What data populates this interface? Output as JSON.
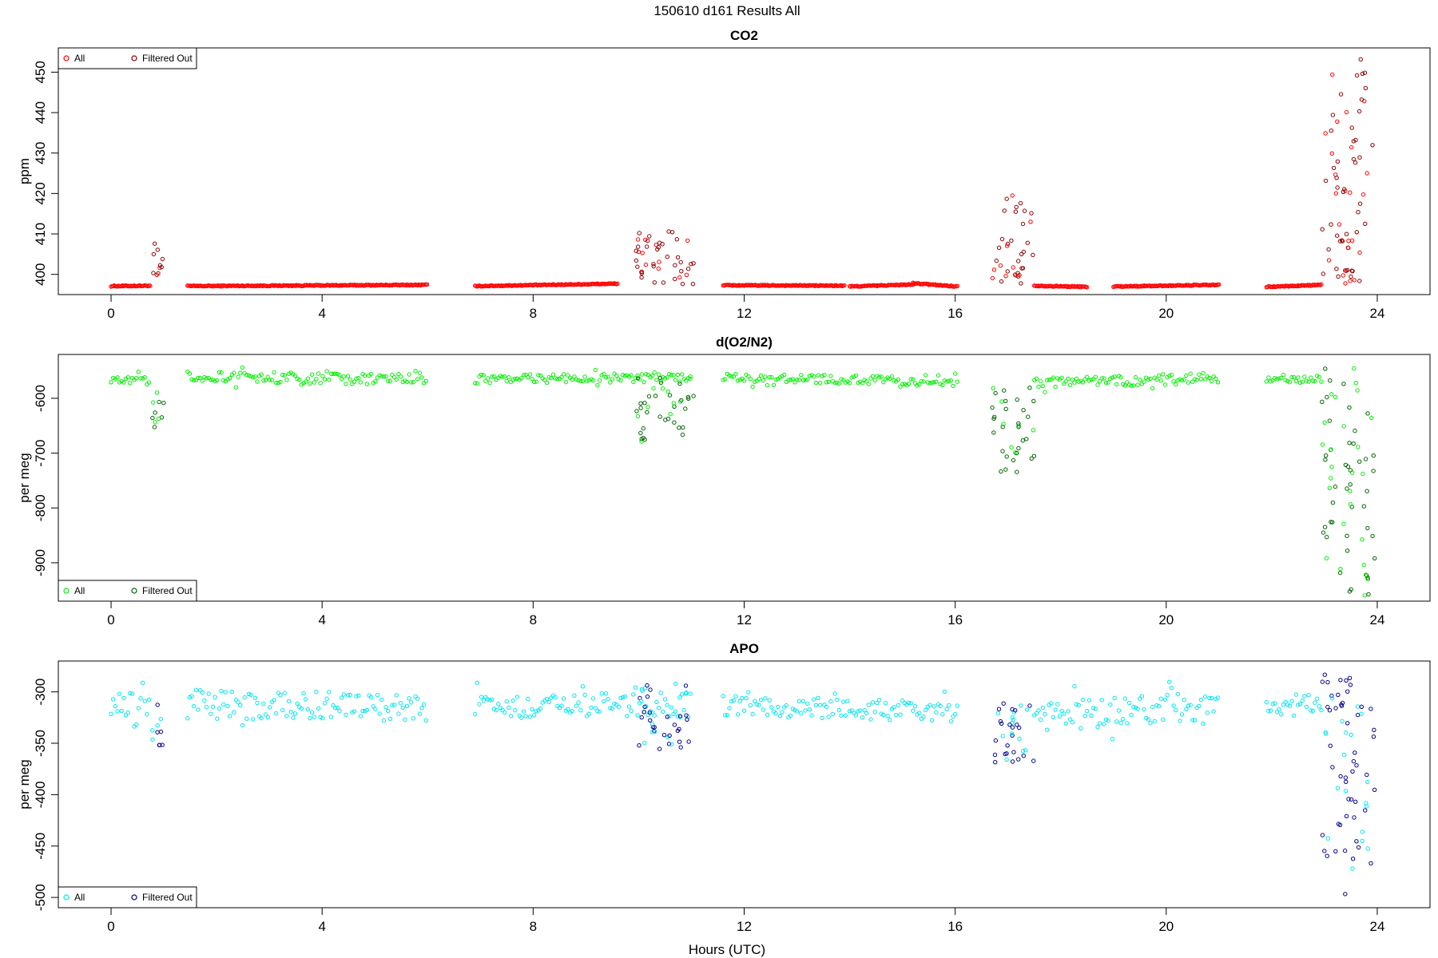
{
  "title": "150610   d161   Results All",
  "xlabel": "Hours (UTC)",
  "chart_data": [
    {
      "type": "scatter",
      "title": "CO2",
      "ylabel": "ppm",
      "xlim": [
        -1,
        25
      ],
      "ylim": [
        395,
        456
      ],
      "xticks": [
        0,
        4,
        8,
        12,
        16,
        20,
        24
      ],
      "yticks": [
        400,
        410,
        420,
        430,
        440,
        450
      ],
      "legend": {
        "position": "top-left",
        "entries": [
          "All",
          "Filtered Out"
        ]
      },
      "colors": {
        "all": "#ff0000",
        "filtered": "#8b0000"
      },
      "baseline_segments": [
        {
          "x0": 0.0,
          "x1": 0.75,
          "y0": 397.1,
          "y1": 397.2
        },
        {
          "x0": 1.45,
          "x1": 6.0,
          "y0": 397.1,
          "y1": 397.4
        },
        {
          "x0": 6.9,
          "x1": 9.6,
          "y0": 397.1,
          "y1": 397.7
        },
        {
          "x0": 11.6,
          "x1": 13.9,
          "y0": 397.3,
          "y1": 397.2
        },
        {
          "x0": 14.0,
          "x1": 15.2,
          "y0": 397.0,
          "y1": 397.5
        },
        {
          "x0": 15.2,
          "x1": 16.05,
          "y0": 397.8,
          "y1": 397.0
        },
        {
          "x0": 17.5,
          "x1": 18.5,
          "y0": 397.2,
          "y1": 396.9
        },
        {
          "x0": 19.0,
          "x1": 21.0,
          "y0": 397.0,
          "y1": 397.4
        },
        {
          "x0": 21.9,
          "x1": 22.95,
          "y0": 396.9,
          "y1": 397.4
        }
      ],
      "spikes": [
        {
          "x0": 0.75,
          "x1": 1.0,
          "min": 397.5,
          "max": 408,
          "n": 10
        },
        {
          "x0": 9.95,
          "x1": 11.05,
          "min": 397.5,
          "max": 411,
          "n": 45
        },
        {
          "x0": 16.7,
          "x1": 17.5,
          "min": 397.5,
          "max": 421,
          "n": 36
        },
        {
          "x0": 22.95,
          "x1": 23.95,
          "min": 397.5,
          "max": 454,
          "n": 70
        }
      ]
    },
    {
      "type": "scatter",
      "title": "d(O2/N2)",
      "ylabel": "per meg",
      "xlim": [
        -1,
        25
      ],
      "ylim": [
        -970,
        -520
      ],
      "xticks": [
        0,
        4,
        8,
        12,
        16,
        20,
        24
      ],
      "yticks": [
        -600,
        -700,
        -800,
        -900
      ],
      "legend": {
        "position": "bottom-left",
        "entries": [
          "All",
          "Filtered Out"
        ]
      },
      "colors": {
        "all": "#00ee00",
        "filtered": "#006400"
      },
      "baseline_segments": [
        {
          "x0": 0.0,
          "x1": 0.75,
          "y0": -563,
          "y1": -567,
          "jitter": 8
        },
        {
          "x0": 1.45,
          "x1": 6.0,
          "y0": -561,
          "y1": -565,
          "jitter": 10
        },
        {
          "x0": 6.9,
          "x1": 11.0,
          "y0": -565,
          "y1": -562,
          "jitter": 8
        },
        {
          "x0": 11.6,
          "x1": 16.05,
          "y0": -562,
          "y1": -570,
          "jitter": 8
        },
        {
          "x0": 17.5,
          "x1": 21.0,
          "y0": -573,
          "y1": -563,
          "jitter": 10
        },
        {
          "x0": 21.9,
          "x1": 22.95,
          "y0": -568,
          "y1": -564,
          "jitter": 6
        }
      ],
      "spikes": [
        {
          "x0": 0.75,
          "x1": 1.0,
          "min": -656,
          "max": -560,
          "n": 10
        },
        {
          "x0": 9.95,
          "x1": 11.05,
          "min": -680,
          "max": -555,
          "n": 40
        },
        {
          "x0": 16.7,
          "x1": 17.5,
          "min": -740,
          "max": -565,
          "n": 36
        },
        {
          "x0": 22.95,
          "x1": 23.95,
          "min": -965,
          "max": -545,
          "n": 70
        }
      ]
    },
    {
      "type": "scatter",
      "title": "APO",
      "ylabel": "per meg",
      "xlim": [
        -1,
        25
      ],
      "ylim": [
        -510,
        -270
      ],
      "xticks": [
        0,
        4,
        8,
        12,
        16,
        20,
        24
      ],
      "yticks": [
        -300,
        -350,
        -400,
        -450,
        -500
      ],
      "legend": {
        "position": "bottom-left",
        "entries": [
          "All",
          "Filtered Out"
        ]
      },
      "colors": {
        "all": "#00e5ee",
        "filtered": "#00008b"
      },
      "baseline_segments": [
        {
          "x0": 0.0,
          "x1": 0.75,
          "y0": -310,
          "y1": -315,
          "jitter": 12
        },
        {
          "x0": 1.45,
          "x1": 6.0,
          "y0": -312,
          "y1": -315,
          "jitter": 14
        },
        {
          "x0": 6.9,
          "x1": 11.0,
          "y0": -315,
          "y1": -312,
          "jitter": 12
        },
        {
          "x0": 11.6,
          "x1": 16.05,
          "y0": -313,
          "y1": -320,
          "jitter": 10
        },
        {
          "x0": 17.5,
          "x1": 21.0,
          "y0": -325,
          "y1": -312,
          "jitter": 14
        },
        {
          "x0": 21.9,
          "x1": 22.95,
          "y0": -318,
          "y1": -315,
          "jitter": 8
        }
      ],
      "spikes": [
        {
          "x0": 0.75,
          "x1": 1.0,
          "min": -352,
          "max": -308,
          "n": 10
        },
        {
          "x0": 9.95,
          "x1": 11.05,
          "min": -358,
          "max": -290,
          "n": 40
        },
        {
          "x0": 16.7,
          "x1": 17.5,
          "min": -370,
          "max": -310,
          "n": 36
        },
        {
          "x0": 22.95,
          "x1": 23.95,
          "min": -497,
          "max": -280,
          "n": 70
        }
      ]
    }
  ]
}
